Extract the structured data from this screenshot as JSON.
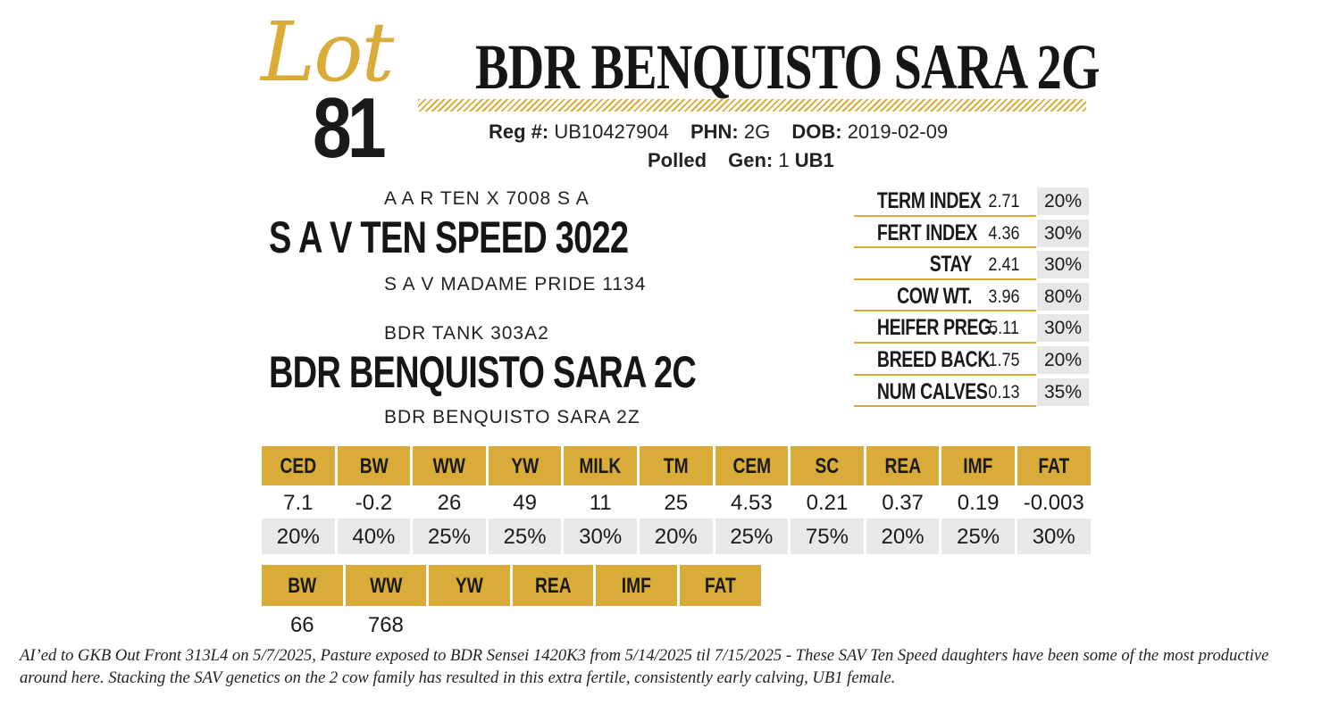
{
  "lot": {
    "script_label": "Lot",
    "number": "81"
  },
  "animal": {
    "name": "BDR BENQUISTO SARA 2G",
    "reg_label": "Reg #:",
    "reg": "UB10427904",
    "phn_label": "PHN:",
    "phn": "2G",
    "dob_label": "DOB:",
    "dob": "2019-02-09",
    "polled": "Polled",
    "gen_label": "Gen:",
    "gen": "1",
    "breed_code": "UB1"
  },
  "pedigree": {
    "sire_sire": "A A R TEN X 7008 S A",
    "sire": "S A V TEN SPEED 3022",
    "sire_dam": "S A V MADAME PRIDE 1134",
    "dam_sire": "BDR TANK 303A2",
    "dam": "BDR BENQUISTO SARA 2C",
    "dam_dam": "BDR BENQUISTO SARA 2Z"
  },
  "indexes": [
    {
      "label": "TERM INDEX",
      "value": "2.71",
      "pct": "20%"
    },
    {
      "label": "FERT INDEX",
      "value": "4.36",
      "pct": "30%"
    },
    {
      "label": "STAY",
      "value": "2.41",
      "pct": "30%"
    },
    {
      "label": "COW WT.",
      "value": "3.96",
      "pct": "80%"
    },
    {
      "label": "HEIFER PREG.",
      "value": "5.11",
      "pct": "30%"
    },
    {
      "label": "BREED BACK",
      "value": "1.75",
      "pct": "20%"
    },
    {
      "label": "NUM CALVES",
      "value": "0.13",
      "pct": "35%"
    }
  ],
  "epds": {
    "headers": [
      "CED",
      "BW",
      "WW",
      "YW",
      "MILK",
      "TM",
      "CEM",
      "SC",
      "REA",
      "IMF",
      "FAT"
    ],
    "values": [
      "7.1",
      "-0.2",
      "26",
      "49",
      "11",
      "25",
      "4.53",
      "0.21",
      "0.37",
      "0.19",
      "-0.003"
    ],
    "percentiles": [
      "20%",
      "40%",
      "25%",
      "25%",
      "30%",
      "20%",
      "25%",
      "75%",
      "20%",
      "25%",
      "30%"
    ]
  },
  "ratios": {
    "headers": [
      "BW",
      "WW",
      "YW",
      "REA",
      "IMF",
      "FAT"
    ],
    "values": [
      "66",
      "768",
      "",
      "",
      "",
      ""
    ]
  },
  "comments": "AI’ed to GKB Out Front 313L4 on 5/7/2025, Pasture exposed to BDR Sensei 1420K3 from 5/14/2025 til 7/15/2025 - These SAV Ten Speed daughters have been some of the most productive around here.  Stacking the SAV genetics on the 2 cow family has resulted in this extra fertile, consistently early calving, UB1 female.",
  "colors": {
    "gold": "#d9ac3a",
    "gray": "#e8e8e8",
    "ink": "#1a1a1a"
  }
}
